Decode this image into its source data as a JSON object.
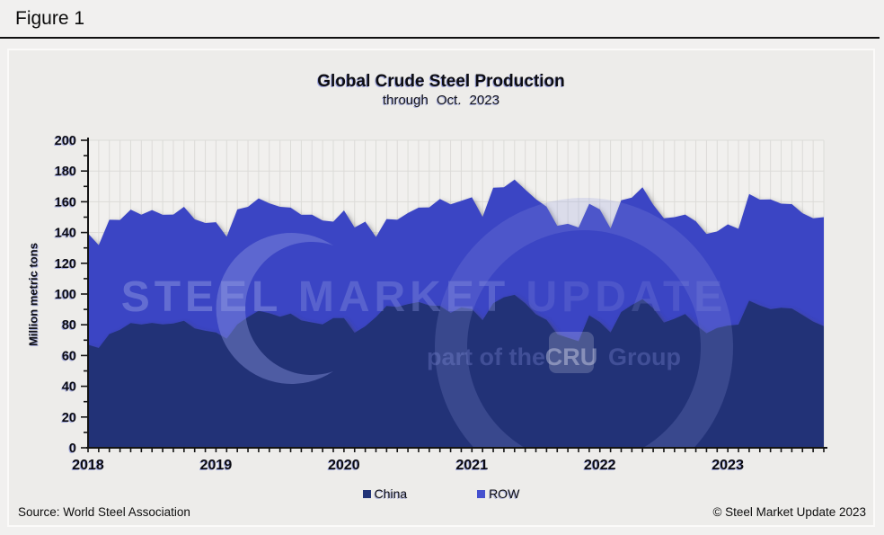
{
  "figure": {
    "label": "Figure 1"
  },
  "chart": {
    "title": "Global Crude Steel Production",
    "subtitle": "through Oct. 2023",
    "ylabel": "Million metric tons"
  },
  "legend": {
    "items": [
      {
        "label": "China",
        "color": "#213377"
      },
      {
        "label": "ROW",
        "color": "#4550cf"
      }
    ]
  },
  "footer": {
    "source": "Source: World Steel Association",
    "copyright": "© Steel Market Update 2023"
  },
  "watermark": {
    "line1": [
      "STEEL",
      "MARKET",
      "UPDATE"
    ],
    "line2_prefix": "part of the",
    "badge": "CRU",
    "line2_suffix": "Group"
  },
  "colors": {
    "china_area": "#213377",
    "row_area": "#3b45c4",
    "plot_bg": "#f1f0ee",
    "grid": "#dcdbd8",
    "axis": "#141414",
    "panel_bg": "#edecea",
    "page_bg": "#f1f0ef",
    "shadow": "#3c3c3c",
    "watermark_tint": "#8c95e0"
  },
  "chart_data": {
    "type": "area",
    "stacked": true,
    "title": "Global Crude Steel Production",
    "subtitle": "through Oct. 2023",
    "ylabel": "Million metric tons",
    "ylim": [
      0,
      200
    ],
    "ytick_step": 20,
    "y_minor_step": 10,
    "grid": true,
    "legend_position": "bottom",
    "xtick_years": [
      "2018",
      "2019",
      "2020",
      "2021",
      "2022",
      "2023"
    ],
    "x": [
      "2018-01",
      "2018-02",
      "2018-03",
      "2018-04",
      "2018-05",
      "2018-06",
      "2018-07",
      "2018-08",
      "2018-09",
      "2018-10",
      "2018-11",
      "2018-12",
      "2019-01",
      "2019-02",
      "2019-03",
      "2019-04",
      "2019-05",
      "2019-06",
      "2019-07",
      "2019-08",
      "2019-09",
      "2019-10",
      "2019-11",
      "2019-12",
      "2020-01",
      "2020-02",
      "2020-03",
      "2020-04",
      "2020-05",
      "2020-06",
      "2020-07",
      "2020-08",
      "2020-09",
      "2020-10",
      "2020-11",
      "2020-12",
      "2021-01",
      "2021-02",
      "2021-03",
      "2021-04",
      "2021-05",
      "2021-06",
      "2021-07",
      "2021-08",
      "2021-09",
      "2021-10",
      "2021-11",
      "2021-12",
      "2022-01",
      "2022-02",
      "2022-03",
      "2022-04",
      "2022-05",
      "2022-06",
      "2022-07",
      "2022-08",
      "2022-09",
      "2022-10",
      "2022-11",
      "2022-12",
      "2023-01",
      "2023-02",
      "2023-03",
      "2023-04",
      "2023-05",
      "2023-06",
      "2023-07",
      "2023-08",
      "2023-09",
      "2023-10"
    ],
    "series": [
      {
        "name": "China",
        "values": [
          67.0,
          64.9,
          74.0,
          76.7,
          81.1,
          80.2,
          81.2,
          80.3,
          80.8,
          82.6,
          77.6,
          76.1,
          75.0,
          70.9,
          80.3,
          85.0,
          89.1,
          87.5,
          85.2,
          87.3,
          82.8,
          81.5,
          80.3,
          84.3,
          84.3,
          74.8,
          79.0,
          85.0,
          92.3,
          91.6,
          93.4,
          94.8,
          92.6,
          92.2,
          87.7,
          91.3,
          90.2,
          83.0,
          94.0,
          97.9,
          99.5,
          93.9,
          86.8,
          83.2,
          73.8,
          71.6,
          69.3,
          86.2,
          81.7,
          75.0,
          88.3,
          92.8,
          96.6,
          90.7,
          81.4,
          83.9,
          87.0,
          79.8,
          74.5,
          77.9,
          79.5,
          80.1,
          95.7,
          92.6,
          90.1,
          91.1,
          90.6,
          86.4,
          82.1,
          79.1
        ]
      },
      {
        "name": "ROW",
        "values": [
          72.4,
          66.9,
          74.3,
          71.5,
          73.8,
          71.4,
          73.4,
          71.2,
          70.9,
          74.1,
          71.0,
          70.1,
          71.7,
          66.4,
          74.7,
          71.7,
          73.1,
          71.5,
          71.5,
          68.9,
          68.7,
          70.1,
          67.5,
          62.8,
          70.1,
          68.5,
          68.1,
          52.1,
          56.5,
          56.7,
          59.3,
          61.4,
          63.8,
          69.7,
          70.6,
          69.3,
          72.7,
          67.2,
          75.2,
          71.6,
          74.9,
          74.0,
          74.9,
          73.6,
          70.6,
          74.1,
          74.0,
          72.5,
          73.3,
          67.7,
          72.7,
          69.9,
          72.9,
          67.4,
          67.9,
          66.1,
          64.7,
          67.5,
          64.6,
          62.8,
          65.8,
          62.3,
          69.4,
          68.8,
          71.5,
          67.7,
          67.9,
          66.2,
          67.2,
          70.9
        ]
      }
    ]
  }
}
